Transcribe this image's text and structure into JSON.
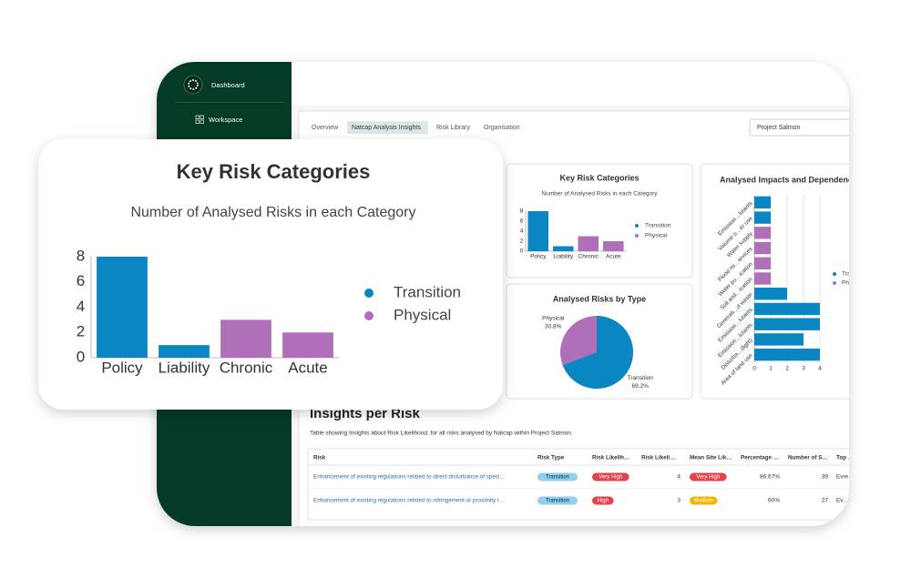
{
  "sidebar": {
    "items": [
      "Dashboard",
      "Workspace"
    ]
  },
  "tabs": [
    "Overview",
    "Natcap Analysis Insights",
    "Risk Library",
    "Organisation"
  ],
  "project": "Project Salmon",
  "insights": {
    "title": "Insights per Risk",
    "description": "Table showing Insights about Risk Likelihood, for all risks analysed by Natcap within Project Salmon.",
    "table": {
      "headers": [
        "Risk",
        "Risk Type",
        "Risk Likelih…",
        "Risk Likeli…",
        "Mean Site Lik…",
        "Percentage …",
        "Number of S…",
        "Top …"
      ],
      "rows": [
        [
          "Enhancement of existing regulations related to direct disturbance of speci…",
          {
            "text": "Transition",
            "color": "#8ed0ee"
          },
          {
            "text": "Very High",
            "color": "#e2434c"
          },
          "4",
          {
            "text": "Very High",
            "color": "#e2434c"
          },
          "86.67%",
          "39",
          "Evre…"
        ],
        [
          "Enhancement of existing regulations related to infringement or proximity t…",
          {
            "text": "Transition",
            "color": "#8ed0ee"
          },
          {
            "text": "High",
            "color": "#e2434c"
          },
          "3",
          {
            "text": "Medium",
            "color": "#f4b400"
          },
          "60%",
          "27",
          "Ev…"
        ]
      ]
    }
  },
  "chart_data": [
    {
      "type": "bar",
      "title": "Key Risk Categories",
      "subtitle": "Number of Analysed Risks in each Category",
      "categories": [
        "Policy",
        "Liability",
        "Chronic",
        "Acute"
      ],
      "series": [
        {
          "name": "Transition",
          "color": "#0a86c2",
          "values": [
            8,
            1,
            null,
            null
          ]
        },
        {
          "name": "Physical",
          "color": "#b06fb9",
          "values": [
            null,
            null,
            3,
            2
          ]
        }
      ],
      "ylim": [
        0,
        8
      ],
      "yticks": [
        0,
        2,
        4,
        6,
        8
      ],
      "legend": "right"
    },
    {
      "type": "pie",
      "title": "Analysed Risks by Type",
      "categories": [
        "Physical",
        "Transition"
      ],
      "values": [
        30.8,
        69.2
      ],
      "value_labels": [
        "30.8%",
        "69.2%"
      ],
      "colors": [
        "#b06fb9",
        "#0a86c2"
      ]
    },
    {
      "type": "hbar",
      "title": "Analysed Impacts and Dependencies",
      "categories": [
        "Emission…lutants",
        "Volume o…er use",
        "Water supply",
        "Flood mi…ervices",
        "Water pu…ication",
        "Soil and…ication",
        "Generati…d waste",
        "Emission…lutants",
        "Emission…lutants",
        "Disturba…(light)",
        "Area of land use"
      ],
      "series": [
        {
          "name": "Transition",
          "color": "#0a86c2",
          "values": [
            1,
            1,
            null,
            null,
            null,
            null,
            2,
            4,
            4,
            3,
            4
          ]
        },
        {
          "name": "Physical",
          "color": "#b06fb9",
          "values": [
            null,
            null,
            1,
            1,
            1,
            1,
            null,
            null,
            null,
            null,
            null
          ]
        }
      ],
      "xlim": [
        0,
        4
      ],
      "xticks": [
        0,
        1,
        2,
        3,
        4
      ],
      "legend": "right"
    }
  ]
}
